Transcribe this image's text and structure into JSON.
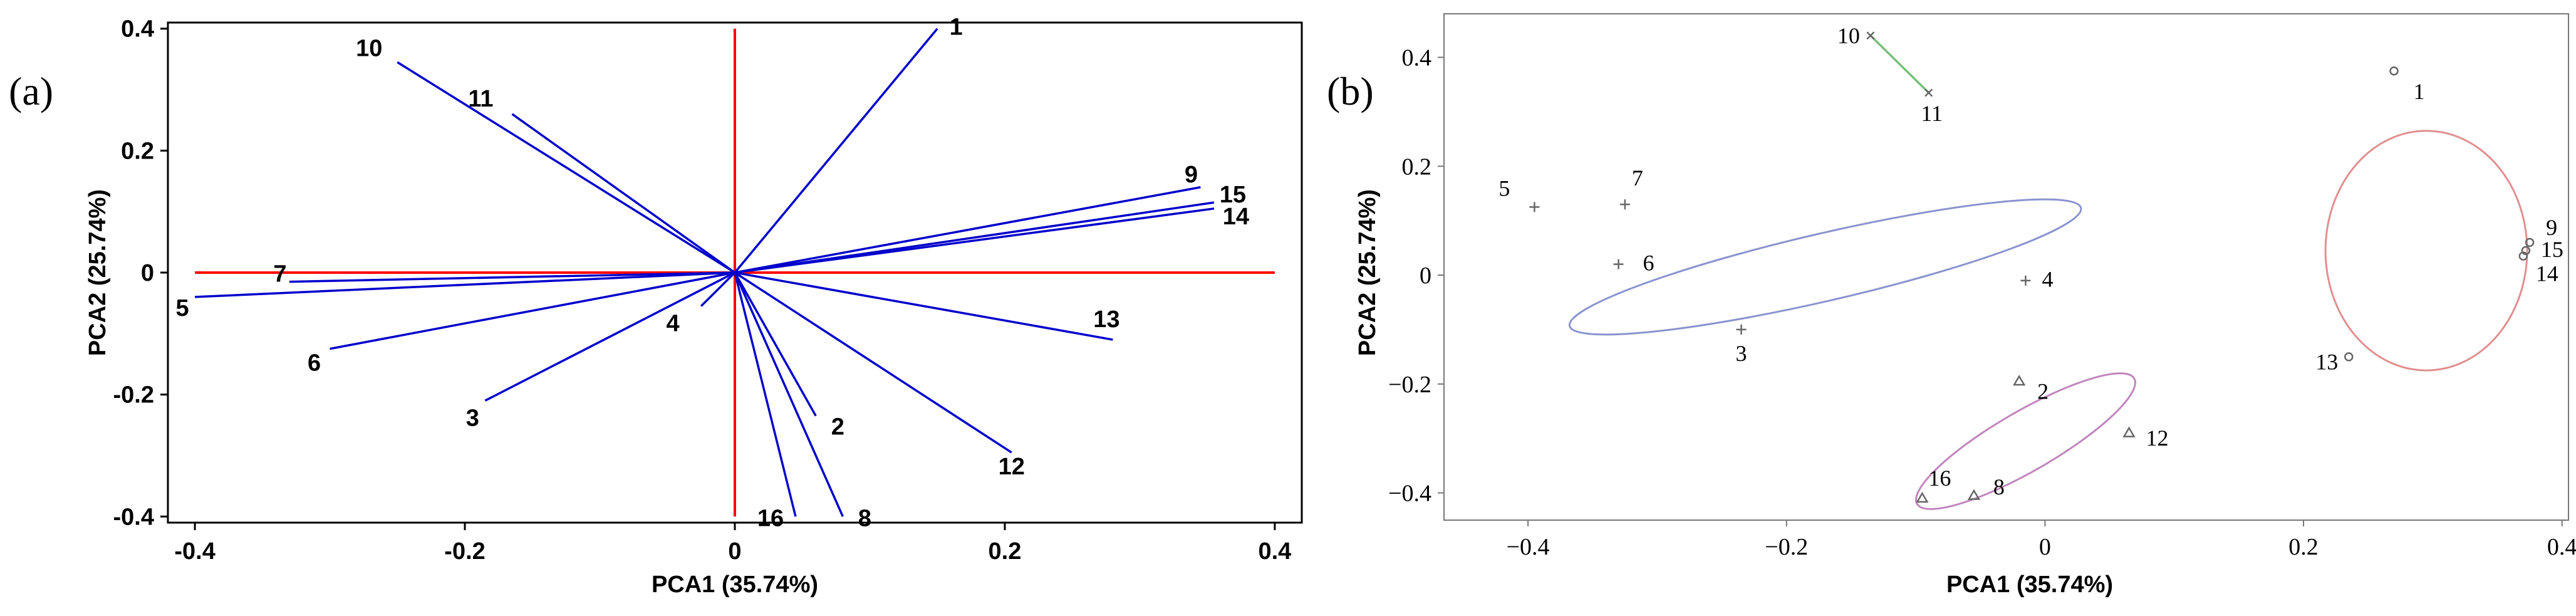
{
  "chart_data": [
    {
      "type": "biplot",
      "panel_label": "(a)",
      "xlabel": "PCA1 (35.74%)",
      "ylabel": "PCA2 (25.74%)",
      "xlim": [
        -0.42,
        0.42
      ],
      "ylim": [
        -0.41,
        0.41
      ],
      "xticks": [
        -0.4,
        -0.2,
        0,
        0.2,
        0.4
      ],
      "xtick_labels": [
        "-0.4",
        "-0.2",
        "0",
        "0.2",
        "0.4"
      ],
      "yticks": [
        -0.4,
        -0.2,
        0,
        0.2,
        0.4
      ],
      "ytick_labels": [
        "-0.4",
        "-0.2",
        "0",
        "0.2",
        "0.4"
      ],
      "axis_lines_color": "#ff0000",
      "vector_color": "#0000cc",
      "vectors": [
        {
          "label": "1",
          "x": 0.15,
          "y": 0.4
        },
        {
          "label": "2",
          "x": 0.06,
          "y": -0.235
        },
        {
          "label": "3",
          "x": -0.185,
          "y": -0.21
        },
        {
          "label": "4",
          "x": -0.025,
          "y": -0.055
        },
        {
          "label": "5",
          "x": -0.4,
          "y": -0.04
        },
        {
          "label": "6",
          "x": -0.3,
          "y": -0.125
        },
        {
          "label": "7",
          "x": -0.33,
          "y": -0.015
        },
        {
          "label": "8",
          "x": 0.08,
          "y": -0.4
        },
        {
          "label": "9",
          "x": 0.345,
          "y": 0.14
        },
        {
          "label": "10",
          "x": -0.25,
          "y": 0.345
        },
        {
          "label": "11",
          "x": -0.165,
          "y": 0.26
        },
        {
          "label": "12",
          "x": 0.205,
          "y": -0.295
        },
        {
          "label": "13",
          "x": 0.28,
          "y": -0.11
        },
        {
          "label": "14",
          "x": 0.355,
          "y": 0.105
        },
        {
          "label": "15",
          "x": 0.355,
          "y": 0.115
        },
        {
          "label": "16",
          "x": 0.045,
          "y": -0.4
        }
      ]
    },
    {
      "type": "scatter",
      "panel_label": "(b)",
      "xlabel": "PCA1 (35.74%)",
      "ylabel": "PCA2 (25.74%)",
      "xlim": [
        -0.465,
        0.405
      ],
      "ylim": [
        -0.45,
        0.48
      ],
      "xticks": [
        -0.4,
        -0.2,
        0,
        0.2,
        0.4
      ],
      "xtick_labels": [
        "−0.4",
        "−0.2",
        "0",
        "0.2",
        "0.4"
      ],
      "yticks": [
        -0.4,
        -0.2,
        0,
        0.2,
        0.4
      ],
      "ytick_labels": [
        "−0.4",
        "−0.2",
        "0",
        "0.2",
        "0.4"
      ],
      "groups": [
        {
          "name": "group-blue",
          "color": "#8a93cf",
          "marker": "+",
          "ellipse": {
            "cx": -0.17,
            "cy": 0.015,
            "rx": 0.203,
            "ry": 0.062,
            "angle_deg": -13
          },
          "points": [
            {
              "label": "3",
              "x": -0.235,
              "y": -0.1
            },
            {
              "label": "4",
              "x": -0.015,
              "y": -0.01
            },
            {
              "label": "5",
              "x": -0.395,
              "y": 0.125
            },
            {
              "label": "6",
              "x": -0.33,
              "y": 0.02
            },
            {
              "label": "7",
              "x": -0.325,
              "y": 0.13
            }
          ]
        },
        {
          "name": "group-magenta",
          "color": "#c286be",
          "marker": "triangle",
          "ellipse": {
            "cx": -0.015,
            "cy": -0.305,
            "rx": 0.097,
            "ry": 0.055,
            "angle_deg": -30
          },
          "points": [
            {
              "label": "2",
              "x": -0.02,
              "y": -0.195
            },
            {
              "label": "8",
              "x": -0.055,
              "y": -0.405
            },
            {
              "label": "12",
              "x": 0.065,
              "y": -0.29
            },
            {
              "label": "16",
              "x": -0.095,
              "y": -0.41
            }
          ]
        },
        {
          "name": "group-red",
          "color": "#e08f8f",
          "marker": "circle",
          "ellipse": {
            "cx": 0.295,
            "cy": 0.045,
            "rx": 0.078,
            "ry": 0.22,
            "angle_deg": 0
          },
          "points": [
            {
              "label": "1",
              "x": 0.27,
              "y": 0.375
            },
            {
              "label": "9",
              "x": 0.375,
              "y": 0.06
            },
            {
              "label": "13",
              "x": 0.235,
              "y": -0.15
            },
            {
              "label": "14",
              "x": 0.37,
              "y": 0.035
            },
            {
              "label": "15",
              "x": 0.372,
              "y": 0.045
            }
          ]
        },
        {
          "name": "group-green",
          "color": "#78be78",
          "marker": "x",
          "ellipse": null,
          "points": [
            {
              "label": "10",
              "x": -0.135,
              "y": 0.44
            },
            {
              "label": "11",
              "x": -0.09,
              "y": 0.335
            }
          ]
        }
      ]
    }
  ]
}
